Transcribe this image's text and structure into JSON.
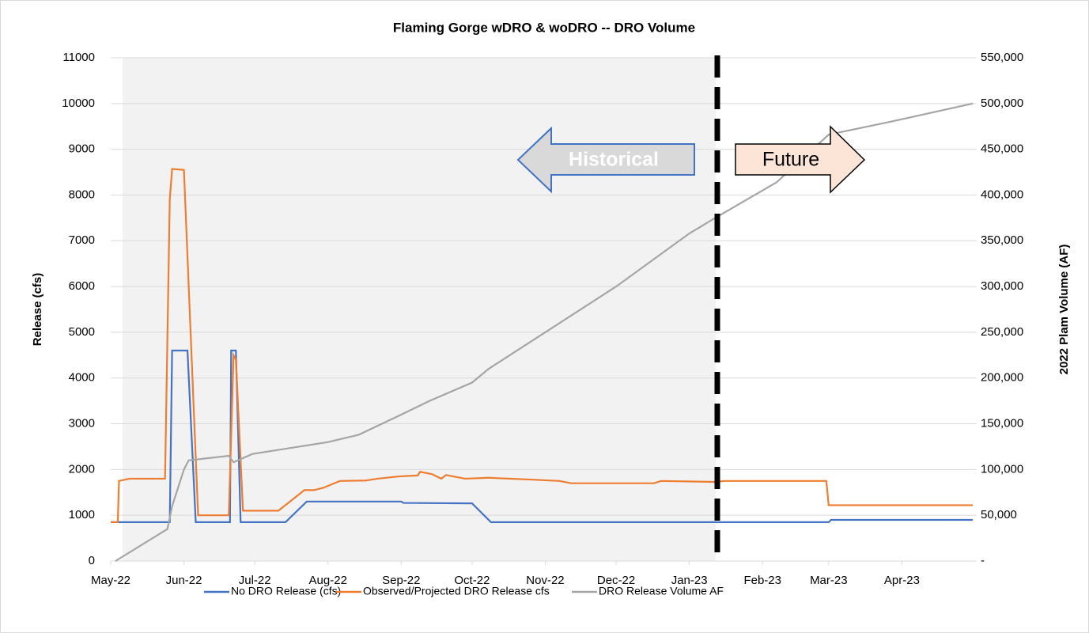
{
  "chart_data": {
    "type": "line",
    "title": "Flaming Gorge wDRO & woDRO -- DRO Volume",
    "ylabel": "Release (cfs)",
    "y2label": "2022 Plam Volume (AF)",
    "annotations": [
      "Historical",
      "Future"
    ],
    "xlim": [
      0,
      365
    ],
    "xticks": [
      {
        "value": 0,
        "label": "May-22"
      },
      {
        "value": 31,
        "label": "Jun-22"
      },
      {
        "value": 61,
        "label": "Jul-22"
      },
      {
        "value": 92,
        "label": "Aug-22"
      },
      {
        "value": 123,
        "label": "Sep-22"
      },
      {
        "value": 153,
        "label": "Oct-22"
      },
      {
        "value": 184,
        "label": "Nov-22"
      },
      {
        "value": 214,
        "label": "Dec-22"
      },
      {
        "value": 245,
        "label": "Jan-23"
      },
      {
        "value": 276,
        "label": "Feb-23"
      },
      {
        "value": 304,
        "label": "Mar-23"
      },
      {
        "value": 335,
        "label": "Apr-23"
      }
    ],
    "ylim": [
      0,
      11000
    ],
    "yticks": [
      0,
      1000,
      2000,
      3000,
      4000,
      5000,
      6000,
      7000,
      8000,
      9000,
      10000,
      11000
    ],
    "y2lim": [
      0,
      550000
    ],
    "y2ticks": [
      {
        "value": 0,
        "label": "-"
      },
      {
        "value": 50000,
        "label": "50,000"
      },
      {
        "value": 100000,
        "label": "100,000"
      },
      {
        "value": 150000,
        "label": "150,000"
      },
      {
        "value": 200000,
        "label": "200,000"
      },
      {
        "value": 250000,
        "label": "250,000"
      },
      {
        "value": 300000,
        "label": "300,000"
      },
      {
        "value": 350000,
        "label": "350,000"
      },
      {
        "value": 400000,
        "label": "400,000"
      },
      {
        "value": 450000,
        "label": "450,000"
      },
      {
        "value": 500000,
        "label": "500,000"
      },
      {
        "value": 550000,
        "label": "550,000"
      }
    ],
    "grid": true,
    "legend": "bottom",
    "series": [
      {
        "name": "No DRO Release (cfs)",
        "color": "#4472c4",
        "x": [
          0,
          25,
          26,
          32.5,
          36,
          50.5,
          51,
          53,
          55,
          74,
          83,
          123,
          124,
          153,
          161,
          304,
          305,
          365
        ],
        "values": [
          850,
          850,
          4600,
          4600,
          850,
          850,
          4600,
          4600,
          850,
          850,
          1300,
          1300,
          1270,
          1260,
          850,
          850,
          900,
          900
        ]
      },
      {
        "name": "Observed/Projected DRO Release cfs",
        "color": "#ed7d31",
        "x": [
          0,
          3,
          3.5,
          8,
          23,
          25,
          26,
          31,
          37,
          50,
          52,
          53,
          56,
          71,
          82,
          86,
          90,
          97,
          108,
          113,
          122,
          130,
          131,
          136,
          140,
          142,
          150,
          160,
          178,
          190,
          195,
          218,
          230,
          233,
          256,
          260,
          303,
          304,
          365
        ],
        "values": [
          850,
          850,
          1750,
          1800,
          1800,
          7900,
          8570,
          8550,
          1000,
          1000,
          4500,
          4400,
          1100,
          1100,
          1550,
          1550,
          1600,
          1750,
          1760,
          1800,
          1850,
          1870,
          1950,
          1900,
          1800,
          1880,
          1800,
          1820,
          1780,
          1750,
          1700,
          1700,
          1700,
          1750,
          1730,
          1750,
          1750,
          1220,
          1220
        ]
      },
      {
        "name": "DRO Release Volume AF",
        "color": "#a5a5a5",
        "axis": "y2",
        "x": [
          2,
          24,
          26,
          31,
          33,
          50,
          52,
          60,
          92,
          105,
          123,
          135,
          153,
          160,
          184,
          214,
          245,
          256,
          282,
          304,
          330,
          365
        ],
        "values": [
          0,
          35000,
          60000,
          100000,
          110000,
          115000,
          108000,
          117000,
          130000,
          138000,
          160000,
          175000,
          195000,
          210000,
          250000,
          300000,
          358000,
          375000,
          414000,
          466000,
          480000,
          500000
        ]
      }
    ]
  }
}
